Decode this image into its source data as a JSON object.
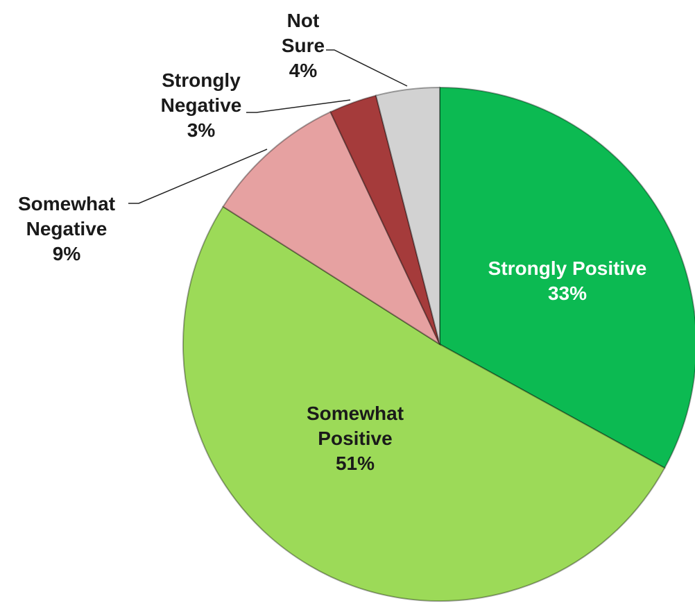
{
  "chart_data": {
    "type": "pie",
    "categories": [
      "Strongly Positive",
      "Somewhat Positive",
      "Somewhat Negative",
      "Strongly Negative",
      "Not Sure"
    ],
    "values": [
      33,
      51,
      9,
      3,
      4
    ],
    "value_labels": [
      "33%",
      "51%",
      "9%",
      "3%",
      "4%"
    ],
    "colors": [
      "#0cba52",
      "#9cda58",
      "#e6a1a1",
      "#a53b3b",
      "#d2d2d2"
    ]
  }
}
